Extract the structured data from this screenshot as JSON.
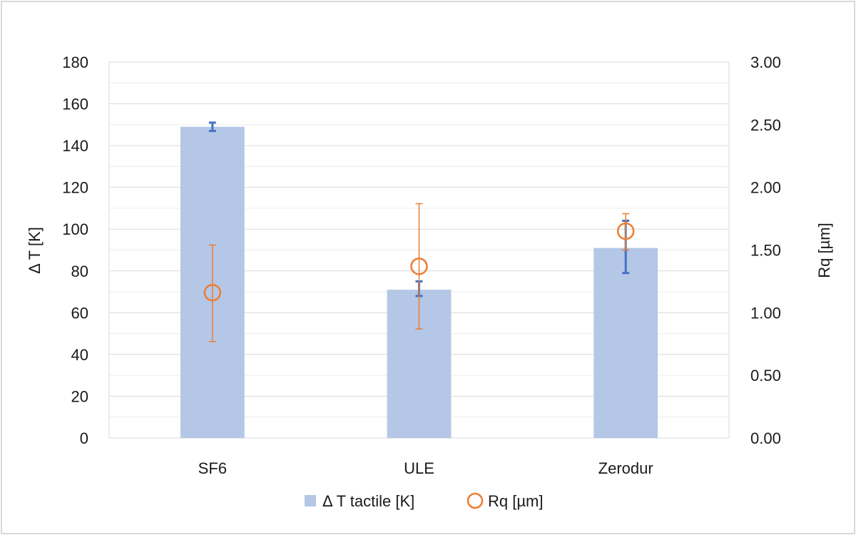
{
  "chart_data": {
    "type": "bar",
    "categories": [
      "SF6",
      "ULE",
      "Zerodur"
    ],
    "series": [
      {
        "name": "Δ T tactile [K]",
        "kind": "bar",
        "axis": "left",
        "values": [
          149,
          71,
          91
        ],
        "error_low": [
          147,
          68,
          79
        ],
        "error_high": [
          151,
          75,
          104
        ],
        "color": "#b4c7e7",
        "error_color": "#4472c4"
      },
      {
        "name": "Rq [µm]",
        "kind": "scatter",
        "marker": "open-circle",
        "axis": "right",
        "values": [
          1.16,
          1.37,
          1.65
        ],
        "error_low": [
          0.77,
          0.87,
          1.5
        ],
        "error_high": [
          1.54,
          1.87,
          1.79
        ],
        "color": "#ed7d31"
      }
    ],
    "y_left": {
      "label": "Δ T [K]",
      "range": [
        0,
        180
      ],
      "ticks": [
        "0",
        "20",
        "40",
        "60",
        "80",
        "100",
        "120",
        "140",
        "160",
        "180"
      ]
    },
    "y_right": {
      "label": "Rq [µm]",
      "range": [
        0,
        3
      ],
      "ticks": [
        "0.00",
        "0.50",
        "1.00",
        "1.50",
        "2.00",
        "2.50",
        "3.00"
      ]
    },
    "grid": true,
    "legend_position": "bottom"
  }
}
